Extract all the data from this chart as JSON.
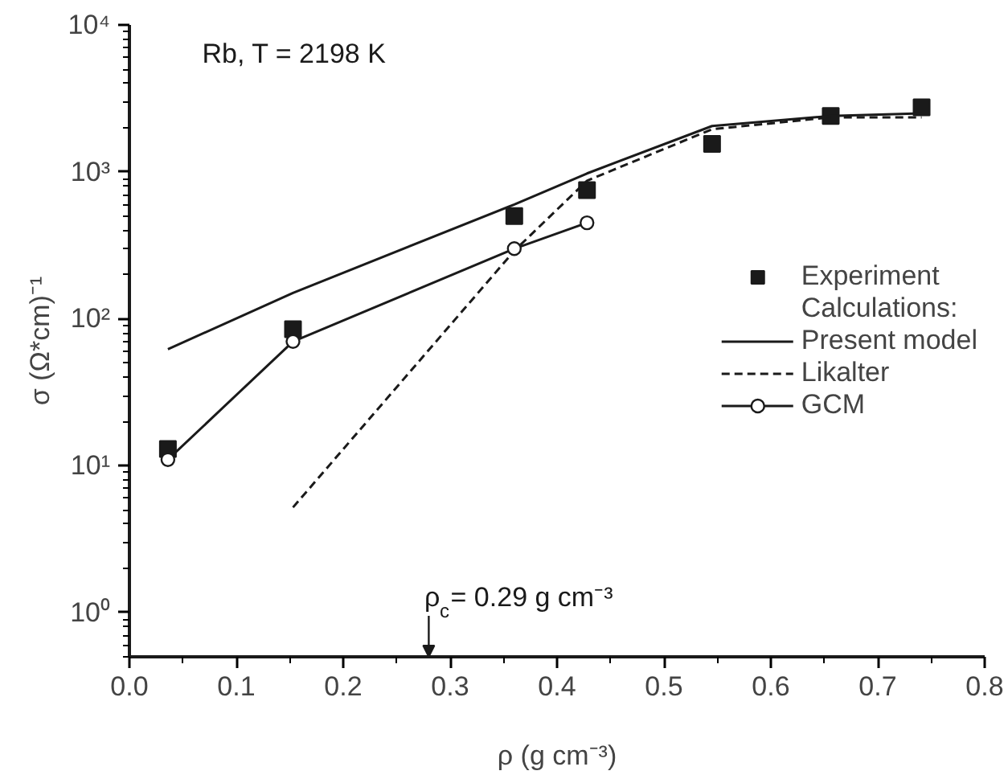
{
  "chart_data": {
    "type": "line",
    "xlabel": "ρ (g cm⁻³)",
    "ylabel": "σ (Ω*cm)⁻¹",
    "log": "y",
    "grid": false,
    "legend": "right",
    "legend_title": "Calculations:",
    "xlim": [
      0,
      0.8
    ],
    "ylim": [
      0.5,
      10000
    ],
    "xticks": [
      {
        "value": 0,
        "label": "0.0"
      },
      0.1,
      0.2,
      0.3,
      0.4,
      0.5,
      0.6,
      0.7,
      0.8
    ],
    "yticks": [
      {
        "value": 1,
        "label": "10⁰"
      },
      {
        "value": 10,
        "label": "10¹"
      },
      {
        "value": 100,
        "label": "10²"
      },
      {
        "value": 1000,
        "label": "10³"
      },
      {
        "value": 10000,
        "label": "10⁴"
      }
    ],
    "series": [
      {
        "name": "Experiment",
        "type": "scatter",
        "marker": "square",
        "color": "#1a1a1a",
        "x": [
          0.036,
          0.153,
          0.36,
          0.428,
          0.545,
          0.656,
          0.741
        ],
        "values": [
          13,
          85,
          500,
          750,
          1550,
          2400,
          2750
        ]
      },
      {
        "name": "Present model",
        "line_style": "solid",
        "marker": "none",
        "color": "#1a1a1a",
        "x": [
          0.036,
          0.153,
          0.36,
          0.428,
          0.545,
          0.656,
          0.741
        ],
        "values": [
          62,
          150,
          600,
          975,
          2050,
          2400,
          2500
        ]
      },
      {
        "name": "Likalter",
        "line_style": "dashed",
        "marker": "none",
        "color": "#1a1a1a",
        "x": [
          0.153,
          0.36,
          0.428,
          0.545,
          0.656,
          0.741
        ],
        "values": [
          5.2,
          290,
          870,
          1950,
          2350,
          2350
        ]
      },
      {
        "name": "GCM",
        "line_style": "solid",
        "marker": "circle",
        "color": "#1a1a1a",
        "x": [
          0.036,
          0.153,
          0.36,
          0.428
        ],
        "values": [
          11,
          70,
          300,
          450
        ]
      }
    ],
    "annotations": [
      "Rb, T = 2198 K",
      "ρ$_{c}$= 0.29 g cm⁻³"
    ]
  }
}
